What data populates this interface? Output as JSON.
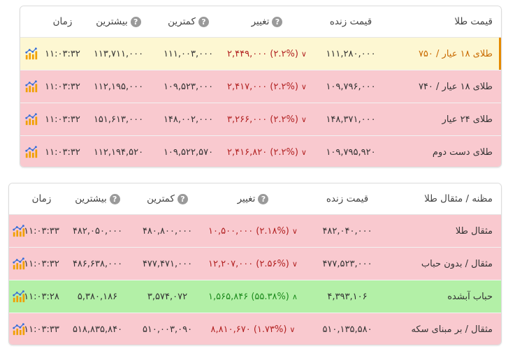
{
  "colors": {
    "row_red": "#f9c9cf",
    "row_green": "#b3f0a7",
    "row_highlight": "#fdf7d2",
    "highlight_text": "#c96a00",
    "down": "#b22222",
    "up": "#1e8c1e"
  },
  "table1": {
    "headers": {
      "name": "قیمت طلا",
      "live": "قیمت زنده",
      "change": "تغییر",
      "min": "کمترین",
      "max": "بیشترین",
      "time": "زمان",
      "help": "?"
    },
    "rows": [
      {
        "name": "طلای ۱۸ عیار / ۷۵۰",
        "live": "۱۱۱,۲۸۰,۰۰۰",
        "change": "۲,۴۴۹,۰۰۰ (۲.۲%)",
        "dir": "down",
        "min": "۱۱۱,۰۰۳,۰۰۰",
        "max": "۱۱۳,۷۱۱,۰۰۰",
        "time": "۱۱:۰۳:۳۲",
        "icon": "chart-icon",
        "bg": "highlight"
      },
      {
        "name": "طلای ۱۸ عیار / ۷۴۰",
        "live": "۱۰۹,۷۹۶,۰۰۰",
        "change": "۲,۴۱۷,۰۰۰ (۲.۲%)",
        "dir": "down",
        "min": "۱۰۹,۵۲۳,۰۰۰",
        "max": "۱۱۲,۱۹۵,۰۰۰",
        "time": "۱۱:۰۳:۳۲",
        "icon": "chart-icon",
        "bg": "red"
      },
      {
        "name": "طلای ۲۴ عیار",
        "live": "۱۴۸,۳۷۱,۰۰۰",
        "change": "۳,۲۶۶,۰۰۰ (۲.۲%)",
        "dir": "down",
        "min": "۱۴۸,۰۰۲,۰۰۰",
        "max": "۱۵۱,۶۱۳,۰۰۰",
        "time": "۱۱:۰۳:۳۲",
        "icon": "chart-icon",
        "bg": "red"
      },
      {
        "name": "طلای دست دوم",
        "live": "۱۰۹,۷۹۵,۹۲۰",
        "change": "۲,۴۱۶,۸۲۰ (۲.۲%)",
        "dir": "down",
        "min": "۱۰۹,۵۲۲,۵۷۰",
        "max": "۱۱۲,۱۹۴,۵۲۰",
        "time": "۱۱:۰۳:۳۲",
        "icon": "chart-icon",
        "bg": "red"
      }
    ]
  },
  "table2": {
    "headers": {
      "name": "مظنه / مثقال طلا",
      "live": "قیمت زنده",
      "change": "تغییر",
      "min": "کمترین",
      "max": "بیشترین",
      "time": "زمان",
      "help": "?"
    },
    "rows": [
      {
        "name": "مثقال طلا",
        "live": "۴۸۲,۰۴۰,۰۰۰",
        "change": "۱۰,۵۰۰,۰۰۰ (۲.۱۸%)",
        "dir": "down",
        "min": "۴۸۰,۸۰۰,۰۰۰",
        "max": "۴۸۲,۰۵۰,۰۰۰",
        "time": "۱۱:۰۳:۳۳",
        "icon": "chart-icon",
        "bg": "red"
      },
      {
        "name": "مثقال / بدون حباب",
        "live": "۴۷۷,۵۲۳,۰۰۰",
        "change": "۱۲,۲۰۷,۰۰۰ (۲.۵۶%)",
        "dir": "down",
        "min": "۴۷۷,۴۷۱,۰۰۰",
        "max": "۴۸۶,۶۳۸,۰۰۰",
        "time": "۱۱:۰۳:۳۲",
        "icon": "chart-icon",
        "bg": "red"
      },
      {
        "name": "حباب آبشده",
        "live": "۴,۳۹۳,۱۰۶",
        "change": "۱,۵۶۵,۸۴۶ (۵۵.۳۸%)",
        "dir": "up",
        "min": "۳,۵۷۴,۰۷۲",
        "max": "۵,۳۸۰,۱۸۶",
        "time": "۱۱:۰۳:۲۸",
        "icon": "chart-icon",
        "bg": "green"
      },
      {
        "name": "مثقال / بر مبنای سکه",
        "live": "۵۱۰,۱۳۵,۵۸۰",
        "change": "۸,۸۱۰,۶۷۰ (۱.۷۳%)",
        "dir": "down",
        "min": "۵۱۰,۰۰۳,۰۹۰",
        "max": "۵۱۸,۸۳۵,۸۴۰",
        "time": "۱۱:۰۳:۳۳",
        "icon": "chart-icon",
        "bg": "red"
      }
    ]
  }
}
